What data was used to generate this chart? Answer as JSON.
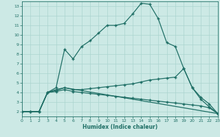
{
  "xlabel": "Humidex (Indice chaleur)",
  "xlim": [
    0,
    23
  ],
  "ylim": [
    1.5,
    13.5
  ],
  "xticks": [
    0,
    1,
    2,
    3,
    4,
    5,
    6,
    7,
    8,
    9,
    10,
    11,
    12,
    13,
    14,
    15,
    16,
    17,
    18,
    19,
    20,
    21,
    22,
    23
  ],
  "yticks": [
    2,
    3,
    4,
    5,
    6,
    7,
    8,
    9,
    10,
    11,
    12,
    13
  ],
  "bg_color": "#cce9e5",
  "grid_color": "#aad4cf",
  "line_color": "#1e6e65",
  "line1_x": [
    0,
    1,
    2,
    3,
    4,
    5,
    6,
    7,
    8,
    9,
    10,
    11,
    12,
    13,
    14,
    15,
    16,
    17,
    18,
    19,
    20,
    21,
    22,
    23
  ],
  "line1_y": [
    2,
    2,
    2,
    4,
    4.5,
    8.5,
    7.5,
    8.8,
    9.4,
    10.2,
    11,
    11,
    11.2,
    12.2,
    13.3,
    13.2,
    11.7,
    9.2,
    8.8,
    6.5,
    4.5,
    3.3,
    2.5,
    1.8
  ],
  "line2_x": [
    0,
    1,
    2,
    3,
    4,
    5,
    6,
    7,
    8,
    9,
    10,
    11,
    12,
    13,
    14,
    15,
    16,
    17,
    18,
    19,
    20,
    21,
    22,
    23
  ],
  "line2_y": [
    2,
    2,
    2,
    4,
    4.2,
    4.5,
    4.3,
    4.3,
    4.4,
    4.5,
    4.6,
    4.7,
    4.8,
    4.9,
    5.1,
    5.3,
    5.4,
    5.5,
    5.6,
    6.5,
    4.5,
    3.5,
    2.8,
    1.8
  ],
  "line3_x": [
    0,
    1,
    2,
    3,
    4,
    5,
    6,
    7,
    8,
    9,
    10,
    11,
    12,
    13,
    14,
    15,
    16,
    17,
    18,
    19,
    20,
    21,
    22,
    23
  ],
  "line3_y": [
    2,
    2,
    2,
    4,
    4.1,
    4.3,
    4.1,
    4.0,
    3.9,
    3.8,
    3.7,
    3.6,
    3.5,
    3.4,
    3.3,
    3.2,
    3.1,
    3.0,
    2.9,
    2.8,
    2.7,
    2.6,
    2.4,
    1.8
  ],
  "line4_x": [
    0,
    1,
    2,
    3,
    4,
    5,
    23
  ],
  "line4_y": [
    2,
    2,
    2,
    4,
    4.3,
    4.5,
    1.8
  ]
}
